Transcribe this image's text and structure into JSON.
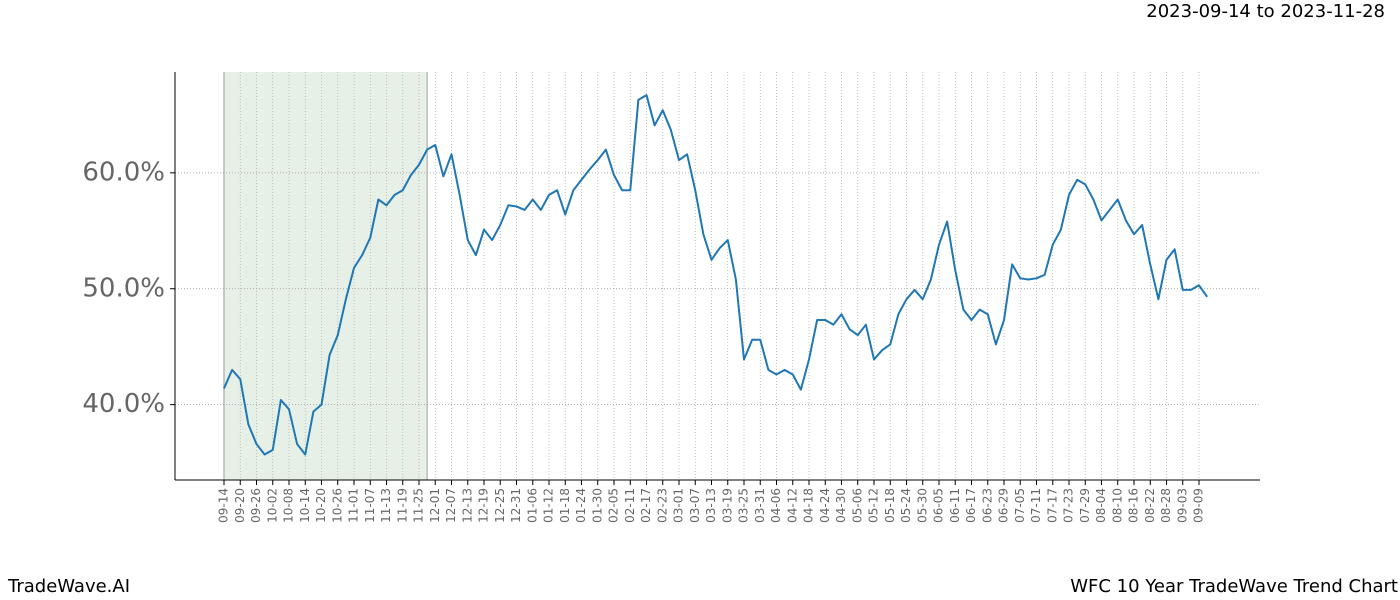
{
  "chart_data": {
    "type": "line",
    "subtitle": "2023-09-14 to 2023-11-28",
    "footer_left": "TradeWave.AI",
    "footer_right": "WFC 10 Year TradeWave Trend Chart",
    "shade": {
      "start": "2023-09-14",
      "end": "2023-11-28",
      "color": "#e6f0e6"
    },
    "categories": [
      "09-14",
      null,
      "09-20",
      null,
      "09-26",
      null,
      "10-02",
      null,
      "10-08",
      null,
      "10-14",
      null,
      "10-20",
      null,
      "10-26",
      null,
      "11-01",
      null,
      "11-07",
      null,
      "11-13",
      null,
      "11-19",
      null,
      "11-25",
      null,
      "12-01",
      null,
      "12-07",
      null,
      "12-13",
      null,
      "12-19",
      null,
      "12-25",
      null,
      "12-31",
      null,
      "01-06",
      null,
      "01-12",
      null,
      "01-18",
      null,
      "01-24",
      null,
      "01-30",
      null,
      "02-05",
      null,
      "02-11",
      null,
      "02-17",
      null,
      "02-23",
      null,
      "03-01",
      null,
      "03-07",
      null,
      "03-13",
      null,
      "03-19",
      null,
      "03-25",
      null,
      "03-31",
      null,
      "04-06",
      null,
      "04-12",
      null,
      "04-18",
      null,
      "04-24",
      null,
      "04-30",
      null,
      "05-06",
      null,
      "05-12",
      null,
      "05-18",
      null,
      "05-24",
      null,
      "05-30",
      null,
      "06-05",
      null,
      "06-11",
      null,
      "06-17",
      null,
      "06-23",
      null,
      "06-29",
      null,
      "07-05",
      null,
      "07-11",
      null,
      "07-17",
      null,
      "07-23",
      null,
      "07-29",
      null,
      "08-04",
      null,
      "08-10",
      null,
      "08-16",
      null,
      "08-22",
      null,
      "08-28",
      null,
      "09-03",
      null,
      "09-09",
      null
    ],
    "series": [
      {
        "name": "WFC",
        "color": "#1f77b4",
        "values": [
          41.4,
          43.0,
          42.2,
          38.3,
          36.6,
          35.7,
          36.1,
          40.4,
          39.6,
          36.6,
          35.7,
          39.4,
          40.0,
          44.3,
          46.0,
          49.1,
          51.8,
          52.9,
          54.4,
          57.7,
          57.2,
          58.1,
          58.5,
          59.8,
          60.7,
          62.0,
          62.4,
          59.7,
          61.6,
          58.1,
          54.2,
          52.9,
          55.1,
          54.2,
          55.5,
          57.2,
          57.1,
          56.8,
          57.7,
          56.8,
          58.1,
          58.5,
          56.4,
          58.5,
          59.4,
          60.3,
          61.1,
          62.0,
          59.8,
          58.5,
          58.5,
          66.3,
          66.7,
          64.1,
          65.4,
          63.7,
          61.1,
          61.6,
          58.5,
          54.7,
          52.5,
          53.5,
          54.2,
          50.8,
          43.9,
          45.6,
          45.6,
          43.0,
          42.6,
          43.0,
          42.6,
          41.3,
          43.9,
          47.3,
          47.3,
          46.9,
          47.8,
          46.5,
          46.0,
          46.9,
          43.9,
          44.7,
          45.2,
          47.8,
          49.1,
          49.9,
          49.1,
          50.8,
          53.8,
          55.8,
          51.6,
          48.2,
          47.3,
          48.2,
          47.8,
          45.2,
          47.3,
          52.1,
          50.9,
          50.8,
          50.9,
          51.2,
          53.8,
          55.1,
          58.1,
          59.4,
          59.0,
          57.7,
          55.9,
          56.8,
          57.7,
          55.9,
          54.7,
          55.5,
          52.1,
          49.1,
          52.5,
          53.4,
          49.9,
          49.9,
          50.3,
          49.3
        ]
      }
    ],
    "ylim": [
      33.5,
      68.7
    ],
    "yticks": [
      {
        "value": 40,
        "label": "40.0%"
      },
      {
        "value": 50,
        "label": "50.0%"
      },
      {
        "value": 60,
        "label": "60.0%"
      }
    ],
    "grid": true
  }
}
